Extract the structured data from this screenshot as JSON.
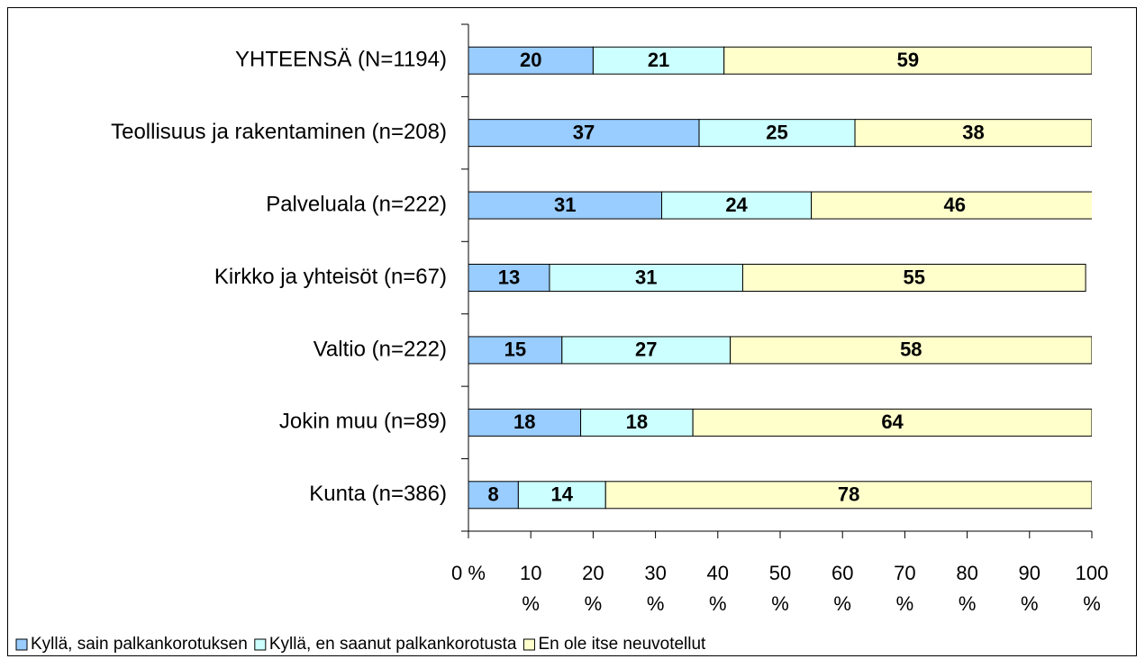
{
  "chart_data": {
    "type": "bar",
    "orientation": "horizontal",
    "stacked": true,
    "categories": [
      "YHTEENSÄ (N=1194)",
      "Teollisuus ja rakentaminen (n=208)",
      "Palveluala (n=222)",
      "Kirkko ja yhteisöt (n=67)",
      "Valtio (n=222)",
      "Jokin muu (n=89)",
      "Kunta (n=386)"
    ],
    "series": [
      {
        "name": "Kyllä, sain palkankorotuksen",
        "color": "#99ccff",
        "values": [
          20,
          37,
          31,
          13,
          15,
          18,
          8
        ]
      },
      {
        "name": "Kyllä, en saanut palkankorotusta",
        "color": "#ccffff",
        "values": [
          21,
          25,
          24,
          31,
          27,
          18,
          14
        ]
      },
      {
        "name": "En ole itse neuvotellut",
        "color": "#ffffcc",
        "values": [
          59,
          38,
          46,
          55,
          58,
          64,
          78
        ]
      }
    ],
    "xlim": [
      0,
      100
    ],
    "xticks": [
      {
        "value": 0,
        "label": "0 %"
      },
      {
        "value": 10,
        "label": "10 %"
      },
      {
        "value": 20,
        "label": "20 %"
      },
      {
        "value": 30,
        "label": "30 %"
      },
      {
        "value": 40,
        "label": "40 %"
      },
      {
        "value": 50,
        "label": "50 %"
      },
      {
        "value": 60,
        "label": "60 %"
      },
      {
        "value": 70,
        "label": "70 %"
      },
      {
        "value": 80,
        "label": "80 %"
      },
      {
        "value": 90,
        "label": "90 %"
      },
      {
        "value": 100,
        "label": "100 %"
      }
    ],
    "legend": "bottom",
    "grid": false
  }
}
